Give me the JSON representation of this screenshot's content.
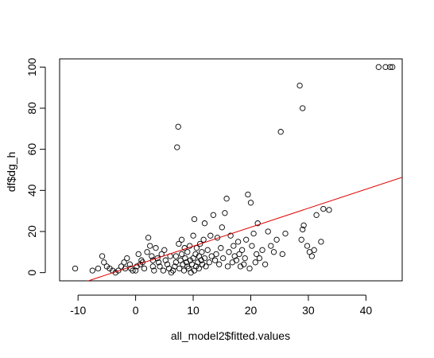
{
  "chart_data": {
    "type": "scatter",
    "title": "",
    "xlabel": "all_model2$fitted.values",
    "ylabel": "df$dg_h",
    "xlim": [
      -13.2,
      46.3
    ],
    "ylim": [
      -4,
      104
    ],
    "x_ticks": [
      -10,
      0,
      10,
      20,
      30,
      40
    ],
    "y_ticks": [
      0,
      20,
      40,
      60,
      80,
      100
    ],
    "x_tick_labels": [
      "-10",
      "0",
      "10",
      "20",
      "30",
      "40"
    ],
    "y_tick_labels": [
      "0",
      "20",
      "40",
      "60",
      "80",
      "100"
    ],
    "grid": false,
    "point_style": "open-circle",
    "colors": {
      "points": "#000000",
      "line": "#e00000",
      "axes": "#000000"
    },
    "series": [
      {
        "type": "scatter",
        "points": [
          [
            -10.5,
            2
          ],
          [
            -7.5,
            1
          ],
          [
            -6.5,
            2
          ],
          [
            -5.8,
            8
          ],
          [
            -5.5,
            5
          ],
          [
            -5,
            3
          ],
          [
            -4.5,
            2
          ],
          [
            -4,
            1
          ],
          [
            -3.5,
            0
          ],
          [
            -3,
            1
          ],
          [
            -2.5,
            3
          ],
          [
            -2,
            5
          ],
          [
            -1.8,
            2
          ],
          [
            -1.5,
            7
          ],
          [
            -1,
            4
          ],
          [
            -0.8,
            2
          ],
          [
            -0.5,
            1
          ],
          [
            0,
            1
          ],
          [
            0.2,
            3
          ],
          [
            0.5,
            9
          ],
          [
            0.8,
            4
          ],
          [
            1,
            6
          ],
          [
            1.2,
            5
          ],
          [
            1.5,
            2
          ],
          [
            2,
            10
          ],
          [
            2.2,
            17
          ],
          [
            2.5,
            13
          ],
          [
            2.8,
            8
          ],
          [
            3,
            6
          ],
          [
            3,
            3
          ],
          [
            3.2,
            1
          ],
          [
            3.5,
            12
          ],
          [
            3.8,
            7
          ],
          [
            4,
            5
          ],
          [
            4.2,
            3
          ],
          [
            4.5,
            9
          ],
          [
            4.8,
            1
          ],
          [
            5,
            11
          ],
          [
            5.2,
            6
          ],
          [
            5.5,
            4
          ],
          [
            5.8,
            2
          ],
          [
            6,
            8
          ],
          [
            6.2,
            0
          ],
          [
            6.5,
            1
          ],
          [
            6.8,
            3
          ],
          [
            7,
            5
          ],
          [
            7,
            8
          ],
          [
            7.2,
            61
          ],
          [
            7.4,
            71
          ],
          [
            7.5,
            14
          ],
          [
            7.6,
            2
          ],
          [
            7.8,
            6
          ],
          [
            8,
            9
          ],
          [
            8,
            16
          ],
          [
            8.2,
            4
          ],
          [
            8.4,
            1
          ],
          [
            8.5,
            12
          ],
          [
            8.6,
            7
          ],
          [
            8.8,
            5
          ],
          [
            9,
            3
          ],
          [
            9,
            10
          ],
          [
            9.2,
            2
          ],
          [
            9.4,
            13
          ],
          [
            9.5,
            6
          ],
          [
            9.6,
            0
          ],
          [
            9.8,
            4
          ],
          [
            10,
            7
          ],
          [
            10,
            18
          ],
          [
            10.2,
            26
          ],
          [
            10.2,
            1
          ],
          [
            10.4,
            9
          ],
          [
            10.5,
            3
          ],
          [
            10.6,
            12
          ],
          [
            10.8,
            5
          ],
          [
            11,
            8
          ],
          [
            11,
            2
          ],
          [
            11.2,
            14
          ],
          [
            11.4,
            6
          ],
          [
            11.5,
            10
          ],
          [
            11.6,
            4
          ],
          [
            11.8,
            16
          ],
          [
            12,
            7
          ],
          [
            12,
            24
          ],
          [
            12.2,
            3
          ],
          [
            12.5,
            11
          ],
          [
            12.8,
            5
          ],
          [
            13,
            18
          ],
          [
            13.2,
            8
          ],
          [
            13.5,
            28
          ],
          [
            13.8,
            6
          ],
          [
            14,
            9
          ],
          [
            14.2,
            17
          ],
          [
            14.5,
            4
          ],
          [
            14.8,
            12
          ],
          [
            15,
            22
          ],
          [
            15.2,
            7
          ],
          [
            15.5,
            29
          ],
          [
            15.8,
            36
          ],
          [
            16,
            3
          ],
          [
            16.2,
            10
          ],
          [
            16.5,
            18
          ],
          [
            16.8,
            5
          ],
          [
            17,
            13
          ],
          [
            17.2,
            8
          ],
          [
            17.5,
            6
          ],
          [
            17.8,
            15
          ],
          [
            18,
            9
          ],
          [
            18.2,
            3
          ],
          [
            18.5,
            11
          ],
          [
            18.8,
            4
          ],
          [
            19,
            7
          ],
          [
            19.2,
            16
          ],
          [
            19.5,
            38
          ],
          [
            19.8,
            2
          ],
          [
            20,
            34
          ],
          [
            20.2,
            13
          ],
          [
            20.5,
            19
          ],
          [
            20.8,
            5
          ],
          [
            21,
            9
          ],
          [
            21.2,
            24
          ],
          [
            21.5,
            7
          ],
          [
            22,
            11
          ],
          [
            22.5,
            4
          ],
          [
            23,
            20
          ],
          [
            23.5,
            13
          ],
          [
            24,
            10
          ],
          [
            24.5,
            16
          ],
          [
            25.2,
            68.5
          ],
          [
            25.5,
            9
          ],
          [
            26,
            19
          ],
          [
            28.5,
            91
          ],
          [
            29,
            80
          ],
          [
            28.8,
            16
          ],
          [
            29,
            21
          ],
          [
            29.2,
            23
          ],
          [
            29.8,
            13
          ],
          [
            30.2,
            10
          ],
          [
            30.6,
            8
          ],
          [
            31,
            11
          ],
          [
            31.4,
            28
          ],
          [
            32.2,
            15
          ],
          [
            32.6,
            31
          ],
          [
            33.6,
            30.5
          ],
          [
            42.2,
            100
          ],
          [
            43.4,
            100
          ],
          [
            44.2,
            100
          ],
          [
            44.6,
            100
          ]
        ]
      },
      {
        "type": "line",
        "name": "",
        "x": [
          -13.2,
          46.3
        ],
        "y": [
          -8.6,
          46.4
        ]
      }
    ]
  }
}
